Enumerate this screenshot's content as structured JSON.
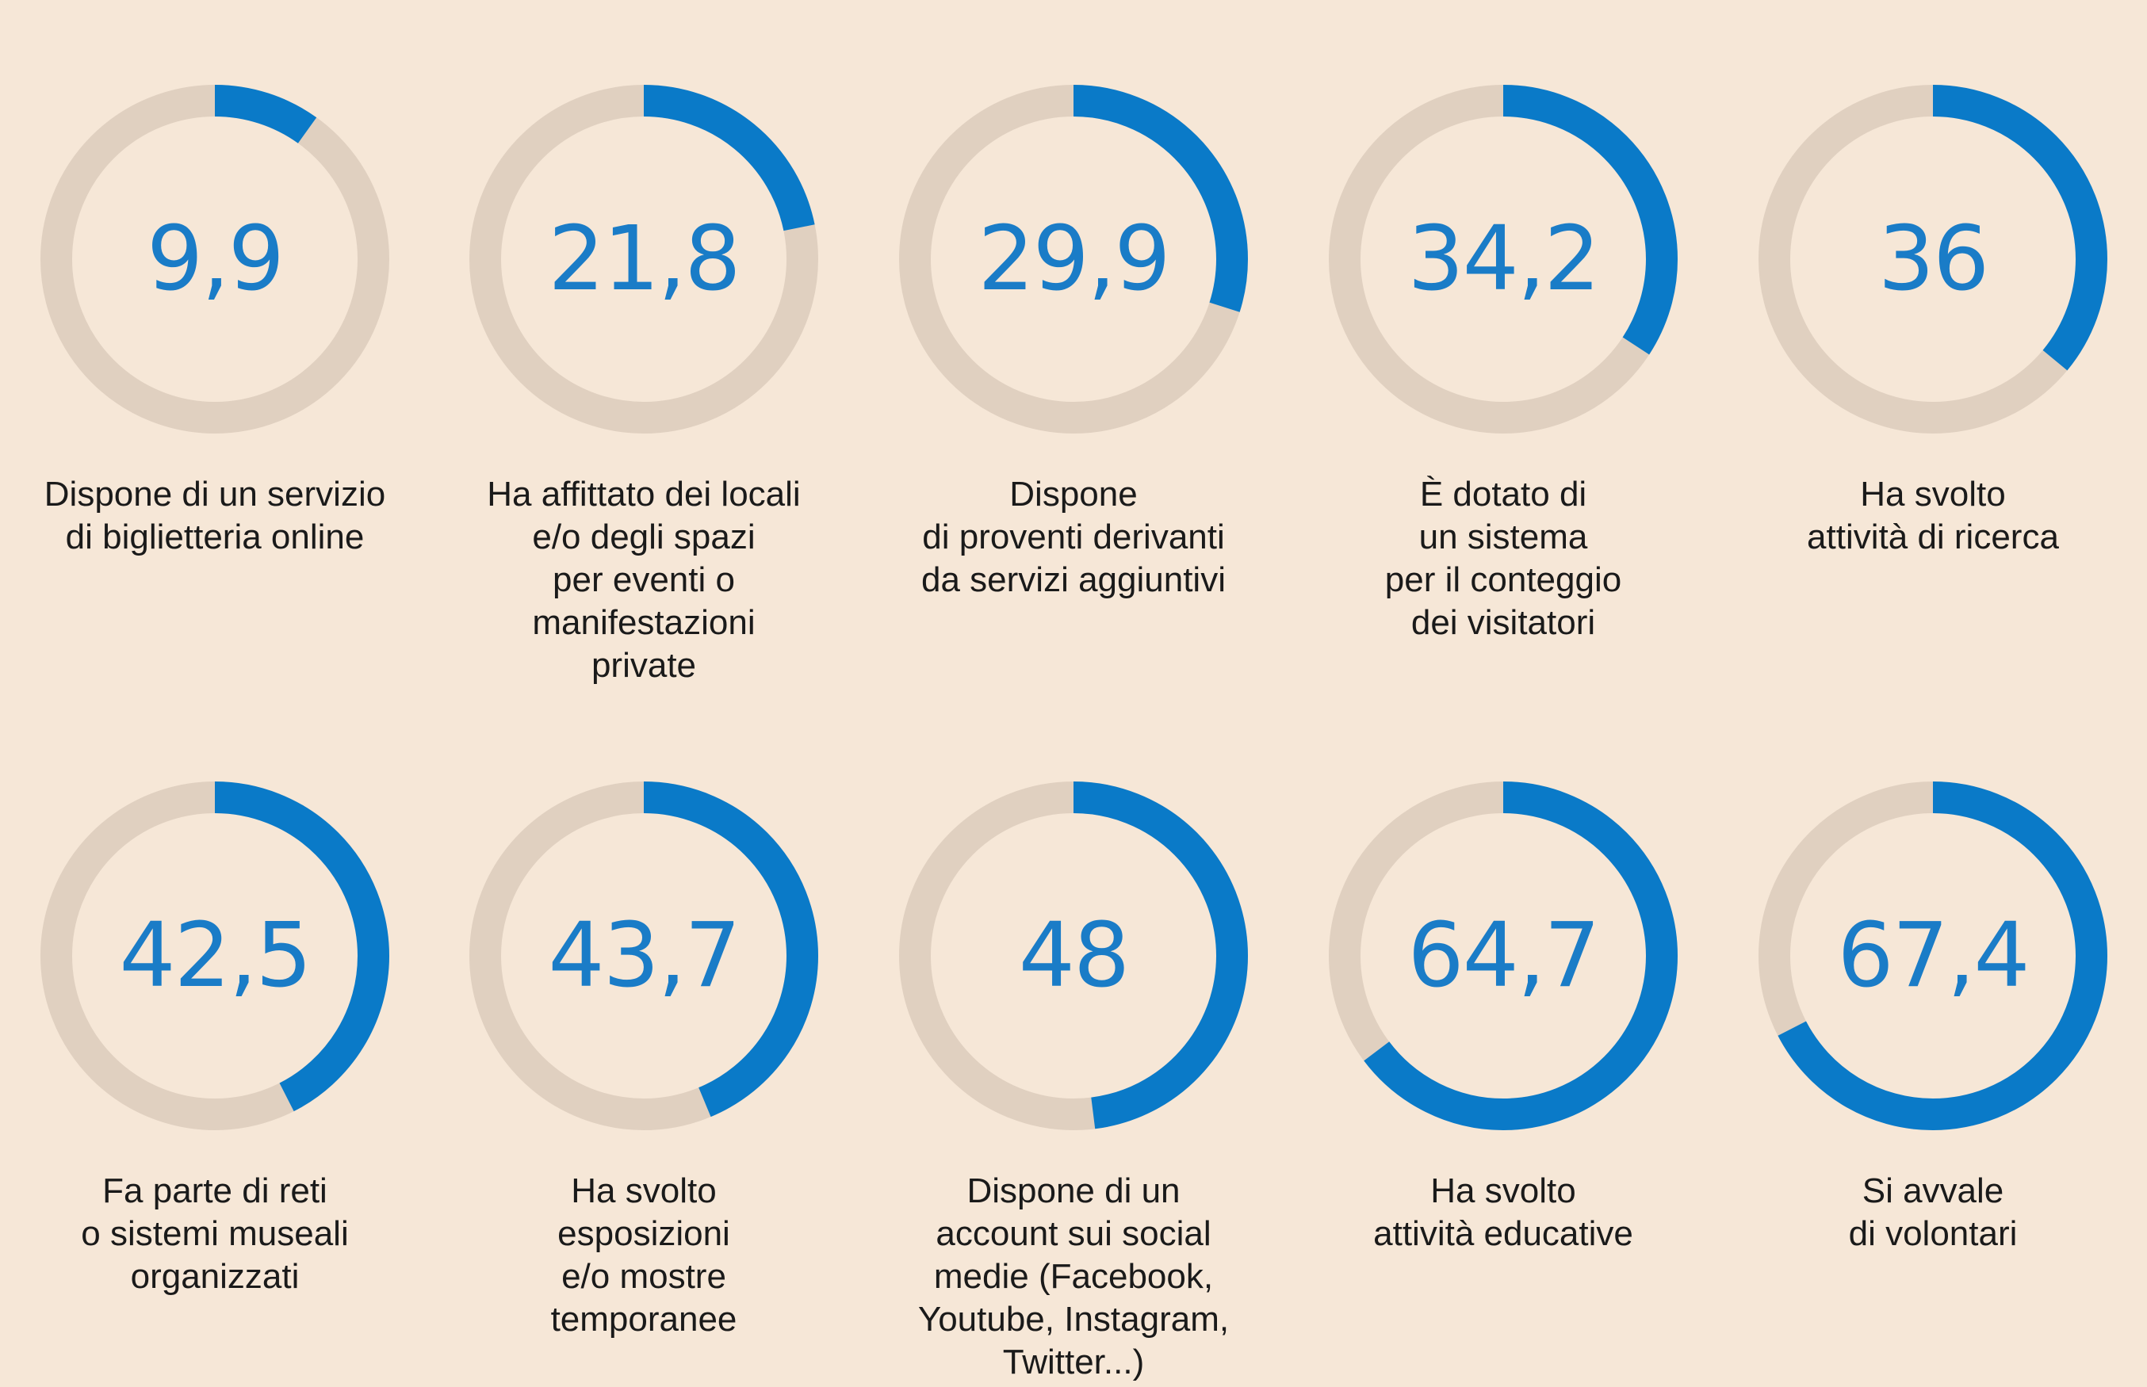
{
  "chart_data": {
    "type": "donut",
    "max": 100,
    "colors": {
      "filled": "#0a7ac8",
      "track": "#e0d0c0",
      "value_text": "#1a7cc7",
      "background": "#f6e7d7"
    },
    "items": [
      {
        "value": 9.9,
        "value_label": "9,9",
        "label": "Dispone di un servizio\ndi biglietteria online"
      },
      {
        "value": 21.8,
        "value_label": "21,8",
        "label": "Ha affittato dei locali\ne/o degli spazi\nper eventi o\nmanifestazioni\nprivate"
      },
      {
        "value": 29.9,
        "value_label": "29,9",
        "label": "Dispone\ndi proventi derivanti\nda servizi aggiuntivi"
      },
      {
        "value": 34.2,
        "value_label": "34,2",
        "label": "È dotato di\nun sistema\nper il conteggio\ndei visitatori"
      },
      {
        "value": 36,
        "value_label": "36",
        "label": "Ha svolto\nattività di ricerca"
      },
      {
        "value": 42.5,
        "value_label": "42,5",
        "label": "Fa parte di reti\no sistemi museali\norganizzati"
      },
      {
        "value": 43.7,
        "value_label": "43,7",
        "label": "Ha svolto\nesposizioni\ne/o mostre\ntemporanee"
      },
      {
        "value": 48,
        "value_label": "48",
        "label": "Dispone di un\naccount sui social\nmedie (Facebook,\nYoutube, Instagram,\nTwitter...)"
      },
      {
        "value": 64.7,
        "value_label": "64,7",
        "label": "Ha svolto\nattività educative"
      },
      {
        "value": 67.4,
        "value_label": "67,4",
        "label": "Si avvale\ndi volontari"
      }
    ]
  }
}
